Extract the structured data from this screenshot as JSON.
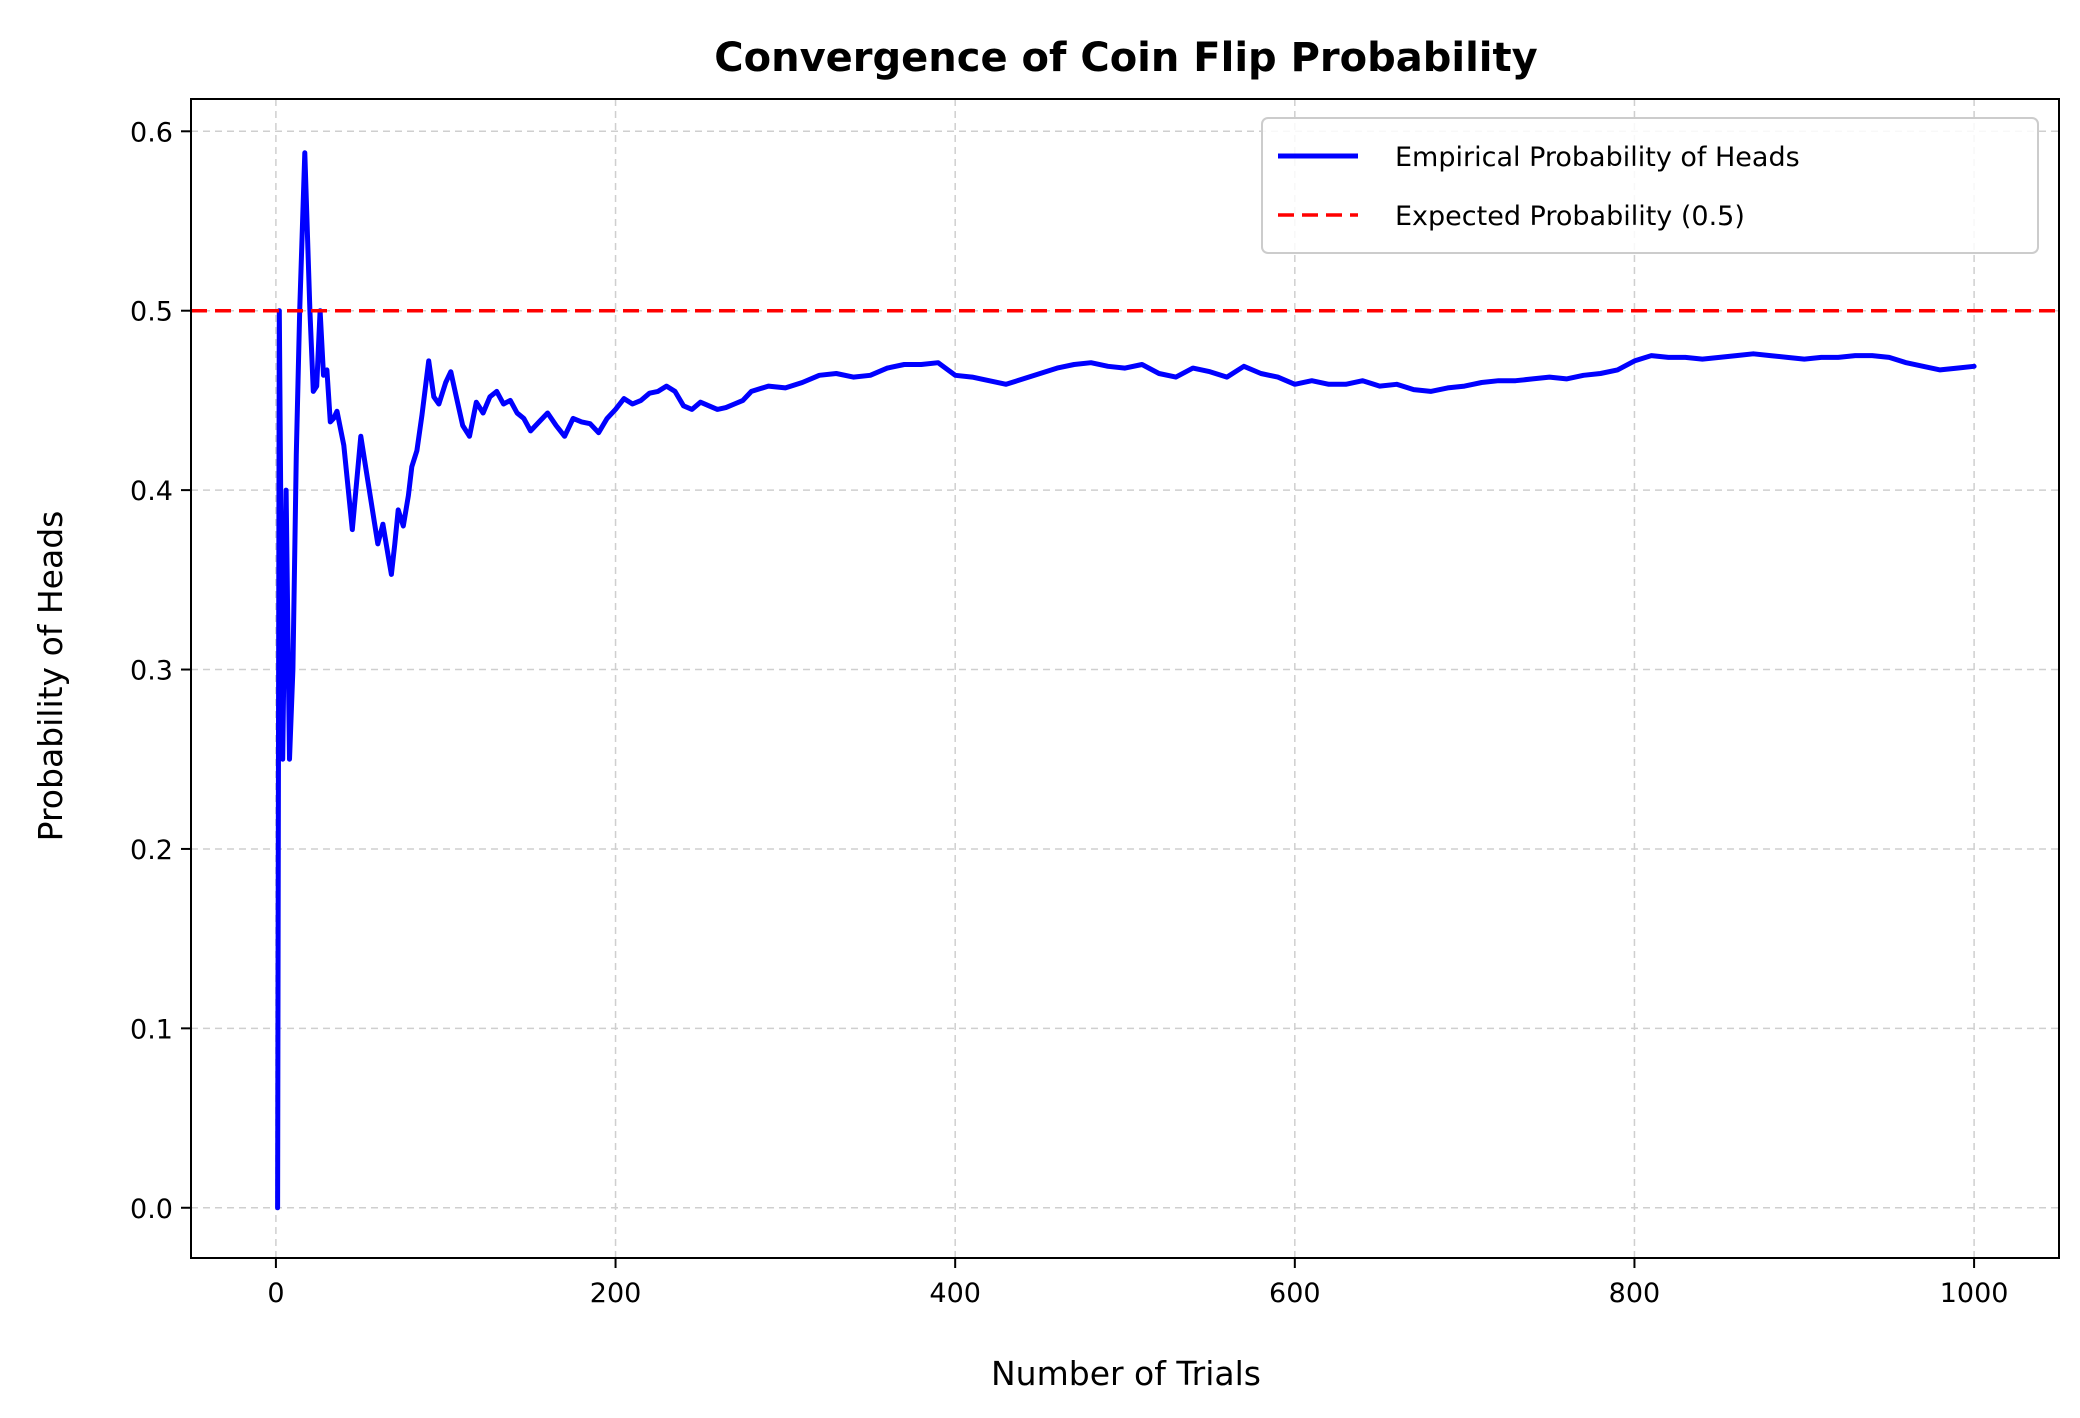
{
  "chart_data": {
    "type": "line",
    "title": "Convergence of Coin Flip Probability",
    "xlabel": "Number of Trials",
    "ylabel": "Probability of Heads",
    "xlim": [
      -50,
      1050
    ],
    "ylim": [
      -0.028,
      0.618
    ],
    "xticks": [
      0,
      200,
      400,
      600,
      800,
      1000
    ],
    "xtick_labels": [
      "0",
      "200",
      "400",
      "600",
      "800",
      "1000"
    ],
    "yticks": [
      0.0,
      0.1,
      0.2,
      0.3,
      0.4,
      0.5,
      0.6
    ],
    "ytick_labels": [
      "0.0",
      "0.1",
      "0.2",
      "0.3",
      "0.4",
      "0.5",
      "0.6"
    ],
    "grid": true,
    "legend_position": "top-right",
    "series": [
      {
        "name": "Empirical Probability of Heads",
        "color": "#0000ff",
        "style": "solid",
        "x": [
          1,
          2,
          4,
          6,
          8,
          10,
          12,
          14,
          17,
          20,
          22,
          24,
          26,
          28,
          30,
          32,
          34,
          36,
          40,
          45,
          50,
          55,
          60,
          63,
          66,
          68,
          70,
          72,
          75,
          78,
          80,
          83,
          86,
          90,
          93,
          96,
          100,
          103,
          106,
          110,
          114,
          118,
          122,
          126,
          130,
          134,
          138,
          142,
          146,
          150,
          155,
          160,
          165,
          170,
          175,
          180,
          185,
          190,
          195,
          200,
          205,
          210,
          215,
          220,
          225,
          230,
          235,
          240,
          245,
          250,
          255,
          260,
          265,
          270,
          275,
          280,
          290,
          300,
          310,
          320,
          330,
          340,
          350,
          360,
          370,
          380,
          390,
          400,
          410,
          420,
          430,
          440,
          450,
          460,
          470,
          480,
          490,
          500,
          510,
          520,
          530,
          540,
          550,
          560,
          570,
          580,
          590,
          600,
          610,
          620,
          630,
          640,
          650,
          660,
          670,
          680,
          690,
          700,
          710,
          720,
          730,
          740,
          750,
          760,
          770,
          780,
          790,
          800,
          810,
          820,
          830,
          840,
          850,
          860,
          870,
          880,
          890,
          900,
          910,
          920,
          930,
          940,
          950,
          960,
          970,
          980,
          990,
          1000
        ],
        "y": [
          0.0,
          0.5,
          0.25,
          0.4,
          0.25,
          0.3,
          0.42,
          0.5,
          0.588,
          0.5,
          0.455,
          0.458,
          0.5,
          0.464,
          0.467,
          0.438,
          0.44,
          0.444,
          0.425,
          0.378,
          0.43,
          0.4,
          0.37,
          0.381,
          0.364,
          0.353,
          0.37,
          0.389,
          0.38,
          0.397,
          0.413,
          0.422,
          0.442,
          0.472,
          0.452,
          0.448,
          0.46,
          0.466,
          0.453,
          0.436,
          0.43,
          0.449,
          0.443,
          0.452,
          0.455,
          0.448,
          0.45,
          0.443,
          0.44,
          0.433,
          0.438,
          0.443,
          0.436,
          0.43,
          0.44,
          0.438,
          0.437,
          0.432,
          0.44,
          0.445,
          0.451,
          0.448,
          0.45,
          0.454,
          0.455,
          0.458,
          0.455,
          0.447,
          0.445,
          0.449,
          0.447,
          0.445,
          0.446,
          0.448,
          0.45,
          0.455,
          0.458,
          0.457,
          0.46,
          0.464,
          0.465,
          0.463,
          0.464,
          0.468,
          0.47,
          0.47,
          0.471,
          0.464,
          0.463,
          0.461,
          0.459,
          0.462,
          0.465,
          0.468,
          0.47,
          0.471,
          0.469,
          0.468,
          0.47,
          0.465,
          0.463,
          0.468,
          0.466,
          0.463,
          0.469,
          0.465,
          0.463,
          0.459,
          0.461,
          0.459,
          0.459,
          0.461,
          0.458,
          0.459,
          0.456,
          0.455,
          0.457,
          0.458,
          0.46,
          0.461,
          0.461,
          0.462,
          0.463,
          0.462,
          0.464,
          0.465,
          0.467,
          0.472,
          0.475,
          0.474,
          0.474,
          0.473,
          0.474,
          0.475,
          0.476,
          0.475,
          0.474,
          0.473,
          0.474,
          0.474,
          0.475,
          0.475,
          0.474,
          0.471,
          0.469,
          0.467,
          0.468,
          0.469
        ]
      },
      {
        "name": "Expected Probability (0.5)",
        "color": "#ff0000",
        "style": "dashed",
        "x": [
          -50,
          1050
        ],
        "y": [
          0.5,
          0.5
        ]
      }
    ]
  }
}
